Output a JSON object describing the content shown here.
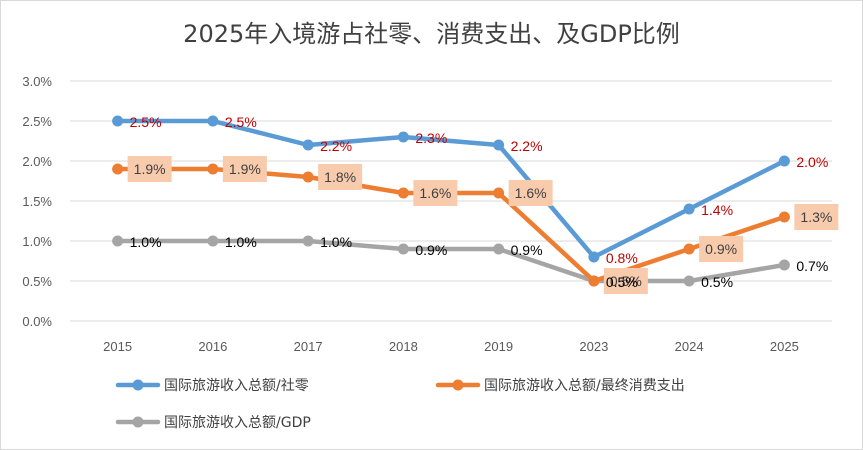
{
  "chart_data": {
    "type": "line",
    "title": "2025年入境游占社零、消费支出、及GDP比例",
    "categories": [
      "2015",
      "2016",
      "2017",
      "2018",
      "2019",
      "2023",
      "2024",
      "2025"
    ],
    "y_ticks": [
      "0.0%",
      "0.5%",
      "1.0%",
      "1.5%",
      "2.0%",
      "2.5%",
      "3.0%"
    ],
    "ylim": [
      0,
      3.0
    ],
    "grid": true,
    "legend_position": "bottom",
    "series": [
      {
        "name": "国际旅游收入总额/社零",
        "values": [
          2.5,
          2.5,
          2.2,
          2.3,
          2.2,
          0.8,
          1.4,
          2.0
        ],
        "labels": [
          "2.5%",
          "2.5%",
          "2.2%",
          "2.3%",
          "2.2%",
          "0.8%",
          "1.4%",
          "2.0%"
        ],
        "color": "#5b9bd5",
        "label_color": "#c00000",
        "label_box": false
      },
      {
        "name": "国际旅游收入总额/最终消费支出",
        "values": [
          1.9,
          1.9,
          1.8,
          1.6,
          1.6,
          0.5,
          0.9,
          1.3
        ],
        "labels": [
          "1.9%",
          "1.9%",
          "1.8%",
          "1.6%",
          "1.6%",
          "0.5%",
          "0.9%",
          "1.3%"
        ],
        "color": "#ed7d31",
        "label_color": "#404040",
        "label_box": true,
        "label_box_color": "#f8cbad"
      },
      {
        "name": "国际旅游收入总额/GDP",
        "values": [
          1.0,
          1.0,
          1.0,
          0.9,
          0.9,
          0.5,
          0.5,
          0.7
        ],
        "labels": [
          "1.0%",
          "1.0%",
          "1.0%",
          "0.9%",
          "0.9%",
          "0.5%",
          "0.5%",
          "0.7%"
        ],
        "color": "#a5a5a5",
        "label_color": "#000000",
        "label_box": false
      }
    ]
  }
}
